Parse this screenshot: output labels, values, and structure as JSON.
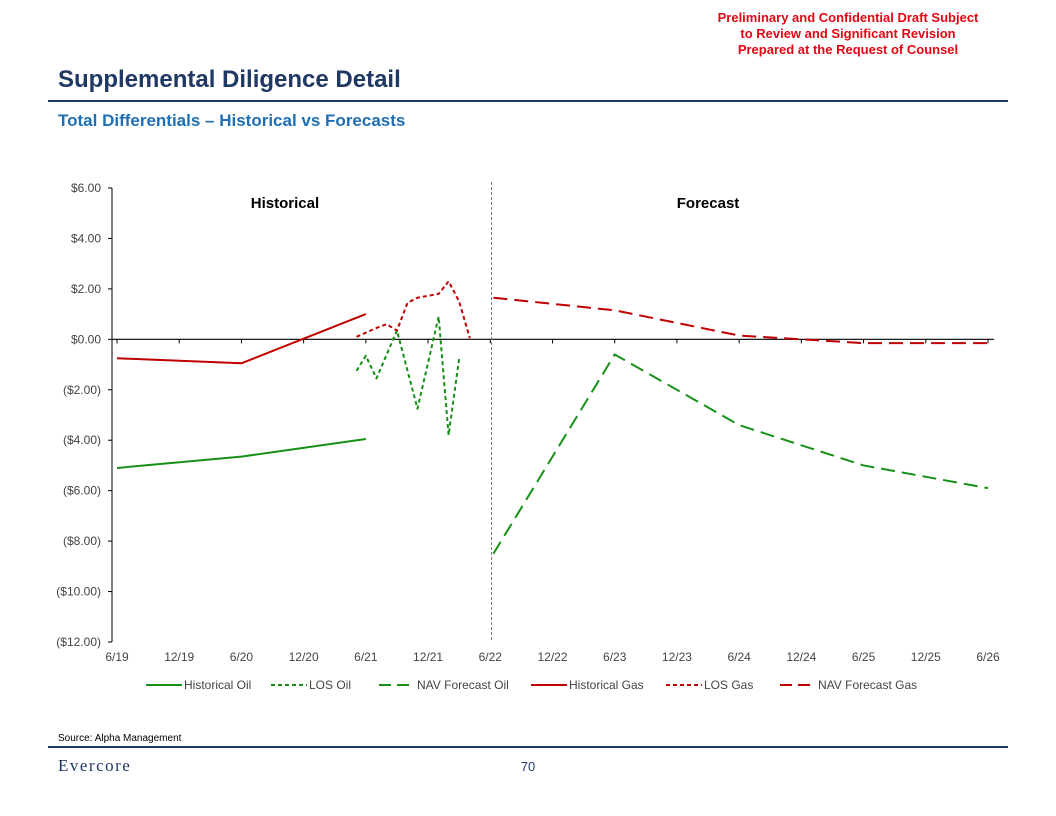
{
  "header": {
    "confidential": [
      "Preliminary and Confidential Draft Subject",
      "to Review and Significant Revision",
      "Prepared at the Request of Counsel"
    ],
    "title": "Supplemental Diligence Detail",
    "subtitle": "Total Differentials – Historical vs Forecasts"
  },
  "footer": {
    "source": "Source: Alpha Management",
    "logo": "Evercore",
    "page_number": "70"
  },
  "chart_data": {
    "type": "line",
    "title": "",
    "xlabel": "",
    "ylabel": "",
    "categories": [
      "6/19",
      "12/19",
      "6/20",
      "12/20",
      "6/21",
      "12/21",
      "6/22",
      "12/22",
      "6/23",
      "12/23",
      "6/24",
      "12/24",
      "6/25",
      "12/25",
      "6/26"
    ],
    "ylim": [
      -12,
      6
    ],
    "yticks": [
      6,
      4,
      2,
      0,
      -2,
      -4,
      -6,
      -8,
      -10,
      -12
    ],
    "ytick_labels": [
      "$6.00",
      "$4.00",
      "$2.00",
      "$0.00",
      "($2.00)",
      "($4.00)",
      "($6.00)",
      "($8.00)",
      "($10.00)",
      "($12.00)"
    ],
    "divider_at": 6,
    "region_labels": [
      {
        "text": "Historical",
        "x": 2.7
      },
      {
        "text": "Forecast",
        "x": 9.5
      }
    ],
    "legend_position": "bottom",
    "series": [
      {
        "name": "Historical Oil",
        "color": "#169016",
        "dash": "solid",
        "points": [
          [
            0,
            -5.1
          ],
          [
            2,
            -4.65
          ],
          [
            4,
            -3.95
          ]
        ]
      },
      {
        "name": "LOS Oil",
        "color": "#169016",
        "dash": "short",
        "points": [
          [
            3.85,
            -1.25
          ],
          [
            4,
            -0.65
          ],
          [
            4.17,
            -1.55
          ],
          [
            4.5,
            0.35
          ],
          [
            4.83,
            -2.75
          ],
          [
            5.17,
            0.9
          ],
          [
            5.33,
            -3.8
          ],
          [
            5.5,
            -0.75
          ]
        ]
      },
      {
        "name": "NAV Forecast Oil",
        "color": "#169016",
        "dash": "long",
        "points": [
          [
            6.05,
            -8.5
          ],
          [
            8,
            -0.6
          ],
          [
            10,
            -3.4
          ],
          [
            12,
            -5.0
          ],
          [
            14,
            -5.9
          ]
        ]
      },
      {
        "name": "Historical Gas",
        "color": "#c00000",
        "dash": "solid",
        "points": [
          [
            0,
            -0.75
          ],
          [
            2,
            -0.95
          ],
          [
            4,
            1.0
          ]
        ]
      },
      {
        "name": "LOS Gas",
        "color": "#c00000",
        "dash": "short",
        "points": [
          [
            3.85,
            0.1
          ],
          [
            4.17,
            0.45
          ],
          [
            4.33,
            0.6
          ],
          [
            4.5,
            0.35
          ],
          [
            4.67,
            1.45
          ],
          [
            4.83,
            1.65
          ],
          [
            5.17,
            1.8
          ],
          [
            5.33,
            2.3
          ],
          [
            5.5,
            1.5
          ],
          [
            5.67,
            0.05
          ]
        ]
      },
      {
        "name": "NAV Forecast Gas",
        "color": "#c00000",
        "dash": "long",
        "points": [
          [
            6.05,
            1.65
          ],
          [
            8,
            1.15
          ],
          [
            10,
            0.15
          ],
          [
            12,
            -0.15
          ],
          [
            14,
            -0.15
          ]
        ]
      }
    ]
  }
}
